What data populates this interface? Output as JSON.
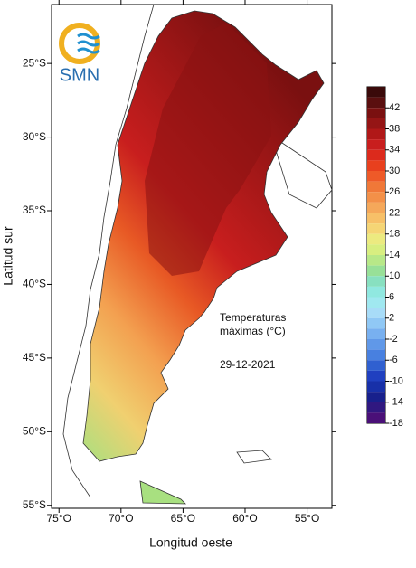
{
  "logo": "SMN",
  "axes": {
    "x_label": "Longitud oeste",
    "y_label": "Latitud sur",
    "xlim": [
      -75.6,
      -53
    ],
    "ylim": [
      -55.2,
      -21
    ],
    "xticks": [
      {
        "value": -75,
        "label": "75°O"
      },
      {
        "value": -70,
        "label": "70°O"
      },
      {
        "value": -65,
        "label": "65°O"
      },
      {
        "value": -60,
        "label": "60°O"
      },
      {
        "value": -55,
        "label": "55°O"
      }
    ],
    "yticks": [
      {
        "value": -25,
        "label": "25°S"
      },
      {
        "value": -30,
        "label": "30°S"
      },
      {
        "value": -35,
        "label": "35°S"
      },
      {
        "value": -40,
        "label": "40°S"
      },
      {
        "value": -45,
        "label": "45°S"
      },
      {
        "value": -50,
        "label": "50°S"
      },
      {
        "value": -55,
        "label": "55°S"
      }
    ]
  },
  "annotation": {
    "lines": [
      "Temperaturas",
      "máximas (°C)"
    ],
    "date": "29-12-2021"
  },
  "colorbar": {
    "clim": [
      -18,
      46
    ],
    "ticks": [
      42,
      38,
      34,
      30,
      26,
      22,
      18,
      14,
      10,
      6,
      2,
      -2,
      -6,
      -10,
      -14,
      -18
    ],
    "colors": [
      "#3a0a0a",
      "#5a0f0f",
      "#7a1010",
      "#951515",
      "#b01818",
      "#c81e1e",
      "#dc2a1c",
      "#e8401e",
      "#ee5a28",
      "#f07838",
      "#f39048",
      "#f5a85a",
      "#f7c068",
      "#f5d575",
      "#ecea80",
      "#d8ee80",
      "#b8e888",
      "#98e098",
      "#88e0c0",
      "#90e8e0",
      "#a0e8f0",
      "#a8dcf8",
      "#90c8f5",
      "#78b0f0",
      "#6098e8",
      "#4880e0",
      "#3060d0",
      "#2040c0",
      "#1830a8",
      "#18208c",
      "#301880",
      "#4a1078"
    ]
  }
}
